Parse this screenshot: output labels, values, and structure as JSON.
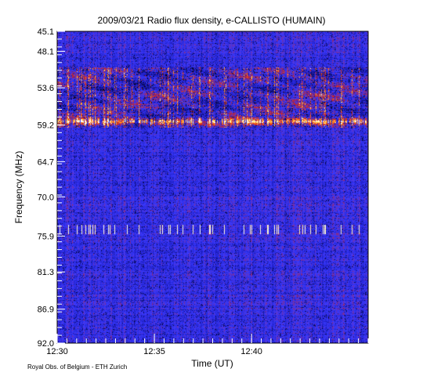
{
  "chart_data": {
    "type": "heatmap",
    "title": "2009/03/21  Radio flux density, e-CALLISTO (HUMAIN)",
    "xlabel": "Time (UT)",
    "ylabel": "Frequency (MHz)",
    "x_ticks": [
      "12:30",
      "12:35",
      "12:40"
    ],
    "y_ticks": [
      "45.1",
      "48.1",
      "53.6",
      "59.2",
      "64.7",
      "70.0",
      "75.9",
      "81.3",
      "86.9",
      "92.0"
    ],
    "x_range": [
      "12:30",
      "12:46"
    ],
    "y_range_mhz": [
      45.1,
      92.0
    ],
    "y_reversed": true,
    "grid": false,
    "colormap": [
      "#000000",
      "#0a0a5a",
      "#1c1cbf",
      "#3a3aff",
      "#c0202a",
      "#ff5a10",
      "#ffd84a",
      "#ffffff"
    ],
    "features": [
      {
        "label": "bright intermittent band",
        "freq_mhz": 58.6
      },
      {
        "label": "active region",
        "freq_mhz_range": [
          50.5,
          58.8
        ]
      },
      {
        "label": "interference band",
        "freq_mhz": 74.9
      }
    ]
  },
  "credit": "Royal Obs. of Belgium - ETH Zurich"
}
